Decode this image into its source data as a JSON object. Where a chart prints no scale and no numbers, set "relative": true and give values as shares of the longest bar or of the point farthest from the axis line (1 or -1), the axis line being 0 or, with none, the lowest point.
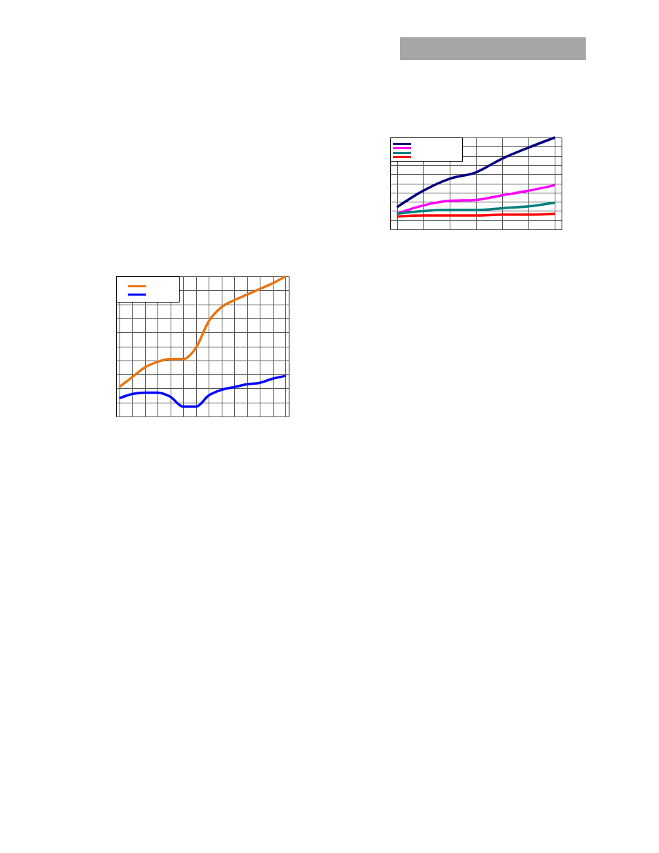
{
  "chart_data": [
    {
      "type": "line",
      "relative": true,
      "grid": true,
      "categories": [
        null,
        null,
        null,
        null,
        null,
        null,
        null
      ],
      "series": [
        {
          "color": "#000080",
          "values": [
            0.24,
            0.42,
            0.55,
            0.62,
            0.77,
            0.89,
            1
          ]
        },
        {
          "color": "#ff00ff",
          "values": [
            0.17,
            0.26,
            0.31,
            0.32,
            0.37,
            0.42,
            0.48
          ]
        },
        {
          "color": "#008080",
          "values": [
            0.17,
            0.2,
            0.21,
            0.21,
            0.23,
            0.25,
            0.29
          ]
        },
        {
          "color": "#ff0000",
          "values": [
            0.14,
            0.15,
            0.15,
            0.15,
            0.16,
            0.16,
            0.17
          ]
        }
      ]
    },
    {
      "type": "line",
      "relative": true,
      "grid": true,
      "categories": [
        null,
        null,
        null,
        null,
        null,
        null,
        null,
        null,
        null,
        null,
        null,
        null,
        null,
        null
      ],
      "series": [
        {
          "color": "#e87511",
          "values": [
            0.21,
            0.28,
            0.35,
            0.39,
            0.41,
            0.41,
            0.49,
            0.68,
            0.78,
            0.83,
            0.87,
            0.91,
            0.95,
            1
          ]
        },
        {
          "color": "#0000ff",
          "values": [
            0.13,
            0.16,
            0.17,
            0.17,
            0.14,
            0.07,
            0.07,
            0.15,
            0.19,
            0.21,
            0.23,
            0.24,
            0.27,
            0.29
          ]
        }
      ]
    }
  ]
}
